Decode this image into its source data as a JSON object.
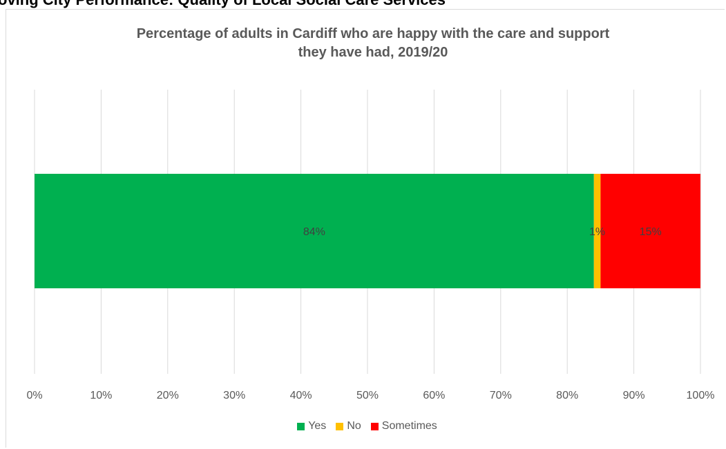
{
  "page": {
    "heading": "oving City Performance: Quality of Local Social Care Services"
  },
  "chart_data": {
    "type": "bar",
    "orientation": "horizontal",
    "stacked": true,
    "percent_stacked": true,
    "title": "Percentage of adults in Cardiff who are happy with the care and support they have had, 2019/20",
    "title_lines": [
      "Percentage of adults in Cardiff who are happy with the care and support",
      "they have had, 2019/20"
    ],
    "categories": [
      ""
    ],
    "series": [
      {
        "name": "Yes",
        "values": [
          84
        ],
        "label": "84%",
        "color": "#00b050"
      },
      {
        "name": "No",
        "values": [
          1
        ],
        "label": "1%",
        "color": "#ffc000"
      },
      {
        "name": "Sometimes",
        "values": [
          15
        ],
        "label": "15%",
        "color": "#ff0000"
      }
    ],
    "xlim": [
      0,
      100
    ],
    "x_ticks": [
      "0%",
      "10%",
      "20%",
      "30%",
      "40%",
      "50%",
      "60%",
      "70%",
      "80%",
      "90%",
      "100%"
    ],
    "gridlines": "vertical",
    "legend_position": "bottom",
    "xlabel": "",
    "ylabel": ""
  }
}
